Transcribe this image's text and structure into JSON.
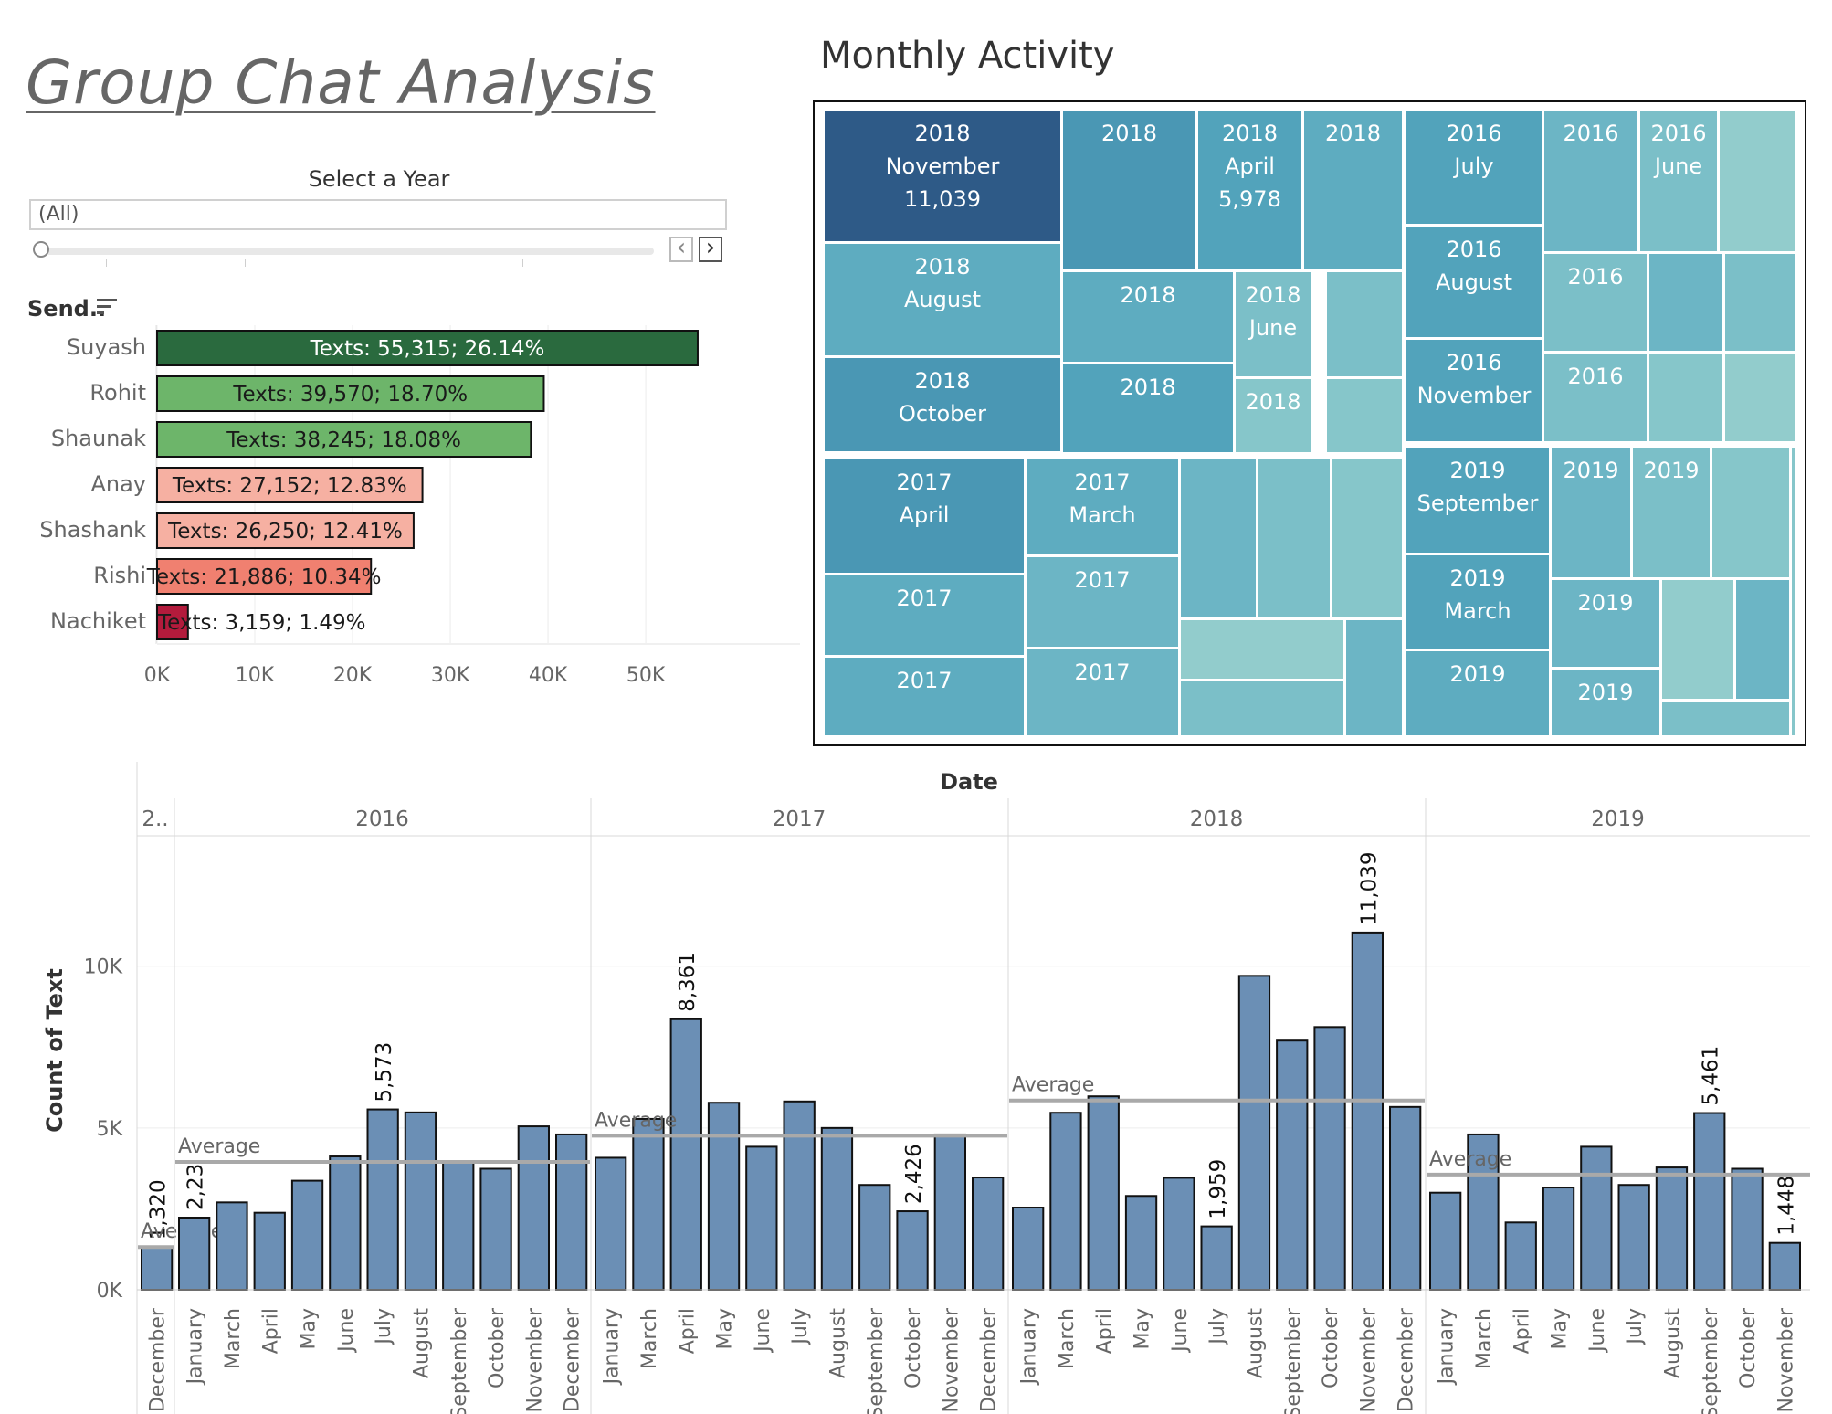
{
  "dashboard": {
    "title": "Group Chat Analysis"
  },
  "year_filter": {
    "title": "Select a Year",
    "value": "(All)",
    "prev_icon": "chevron-left-icon",
    "next_icon": "chevron-right-icon"
  },
  "senders": {
    "header": "Send..",
    "sort_icon": "sort-descending-icon"
  },
  "treemap": {
    "title": "Monthly Activity"
  },
  "colors": {
    "dark_green": "#2a6a3e",
    "mid_green": "#6db56a",
    "light_salmon": "#f6b0a2",
    "salmon": "#f08070",
    "crimson": "#b31b3c",
    "bar_blue": "#6b8fb5",
    "treemap_dark": "#2e5a87",
    "treemap_light": "#92cccc"
  },
  "chart_data": [
    {
      "type": "bar",
      "orientation": "horizontal",
      "categories": [
        "Suyash",
        "Rohit",
        "Shaunak",
        "Anay",
        "Shashank",
        "Rishi",
        "Nachiket"
      ],
      "values": [
        55315,
        39570,
        38245,
        27152,
        26250,
        21886,
        3159
      ],
      "labels": [
        "Texts: 55,315; 26.14%",
        "Texts: 39,570; 18.70%",
        "Texts: 38,245; 18.08%",
        "Texts: 27,152; 12.83%",
        "Texts: 26,250; 12.41%",
        "Texts: 21,886; 10.34%",
        "Texts: 3,159; 1.49%"
      ],
      "colors": [
        "#2a6a3e",
        "#6db56a",
        "#6db56a",
        "#f6b0a2",
        "#f6b0a2",
        "#f08070",
        "#b31b3c"
      ],
      "xlim": [
        0,
        57000
      ],
      "ticks": [
        0,
        10000,
        20000,
        30000,
        40000,
        50000
      ],
      "tick_labels": [
        "0K",
        "10K",
        "20K",
        "30K",
        "40K",
        "50K"
      ],
      "grid": true
    },
    {
      "type": "heatmap",
      "subtype": "treemap",
      "cells": [
        {
          "year": "2018",
          "month": "November",
          "value": 11039,
          "label": "2018\nNovember\n11,039"
        },
        {
          "year": "2018",
          "month": "",
          "label": "2018"
        },
        {
          "year": "2018",
          "month": "April",
          "value": 5978,
          "label": "2018\nApril\n5,978"
        },
        {
          "year": "2018",
          "month": "",
          "label": "2018"
        },
        {
          "year": "2018",
          "month": "August",
          "label": "2018\nAugust"
        },
        {
          "year": "2018",
          "month": "",
          "label": "2018"
        },
        {
          "year": "2018",
          "month": "June",
          "label": "2018\nJune"
        },
        {
          "year": "2018",
          "month": "October",
          "label": "2018\nOctober"
        },
        {
          "year": "2018",
          "month": "",
          "label": "2018"
        },
        {
          "year": "2018",
          "month": "",
          "label": "2018"
        },
        {
          "year": "2016",
          "month": "July",
          "label": "2016\nJuly"
        },
        {
          "year": "2016",
          "month": "",
          "label": "2016"
        },
        {
          "year": "2016",
          "month": "June",
          "label": "2016\nJune"
        },
        {
          "year": "2016",
          "month": "August",
          "label": "2016\nAugust"
        },
        {
          "year": "2016",
          "month": "",
          "label": "2016"
        },
        {
          "year": "2016",
          "month": "November",
          "label": "2016\nNovember"
        },
        {
          "year": "2016",
          "month": "",
          "label": "2016"
        },
        {
          "year": "2017",
          "month": "April",
          "label": "2017\nApril"
        },
        {
          "year": "2017",
          "month": "March",
          "label": "2017\nMarch"
        },
        {
          "year": "2017",
          "month": "",
          "label": "2017"
        },
        {
          "year": "2017",
          "month": "",
          "label": "2017"
        },
        {
          "year": "2017",
          "month": "",
          "label": "2017"
        },
        {
          "year": "2017",
          "month": "",
          "label": "2017"
        },
        {
          "year": "2019",
          "month": "September",
          "label": "2019\nSeptember"
        },
        {
          "year": "2019",
          "month": "",
          "label": "2019"
        },
        {
          "year": "2019",
          "month": "",
          "label": "2019"
        },
        {
          "year": "2019",
          "month": "March",
          "label": "2019\nMarch"
        },
        {
          "year": "2019",
          "month": "",
          "label": "2019"
        },
        {
          "year": "2019",
          "month": "",
          "label": "2019"
        },
        {
          "year": "2019",
          "month": "",
          "label": "2019"
        }
      ]
    },
    {
      "type": "bar",
      "title": "Date",
      "xlabel": "",
      "ylabel": "Count of Text",
      "ylim": [
        0,
        14000
      ],
      "yticks": [
        0,
        5000,
        10000
      ],
      "ytick_labels": [
        "0K",
        "5K",
        "10K"
      ],
      "grid": true,
      "average_label": "Average",
      "panels": [
        {
          "year_label": "2..",
          "months": [
            "December"
          ],
          "values": [
            1320
          ],
          "labels": [
            "1,320"
          ],
          "average": 1320
        },
        {
          "year_label": "2016",
          "months": [
            "January",
            "March",
            "April",
            "May",
            "June",
            "July",
            "August",
            "September",
            "October",
            "November",
            "December"
          ],
          "values": [
            2230,
            2700,
            2380,
            3370,
            4120,
            5573,
            5480,
            3950,
            3740,
            5050,
            4800
          ],
          "labels": [
            "2,23",
            "",
            "",
            "",
            "",
            "5,573",
            "",
            "",
            "",
            "",
            ""
          ],
          "average": 3950
        },
        {
          "year_label": "2017",
          "months": [
            "January",
            "March",
            "April",
            "May",
            "June",
            "July",
            "August",
            "September",
            "October",
            "November",
            "December"
          ],
          "values": [
            4080,
            5280,
            8361,
            5780,
            4420,
            5820,
            5000,
            3240,
            2426,
            4800,
            3470
          ],
          "labels": [
            "",
            "",
            "8,361",
            "",
            "",
            "",
            "",
            "",
            "2,426",
            "",
            ""
          ],
          "average": 4760
        },
        {
          "year_label": "2018",
          "months": [
            "January",
            "March",
            "April",
            "May",
            "June",
            "July",
            "August",
            "September",
            "October",
            "November",
            "December"
          ],
          "values": [
            2540,
            5470,
            5978,
            2900,
            3460,
            1959,
            9700,
            7700,
            8120,
            11039,
            5650
          ],
          "labels": [
            "",
            "",
            "",
            "",
            "",
            "1,959",
            "",
            "",
            "",
            "11,039",
            ""
          ],
          "average": 5850
        },
        {
          "year_label": "2019",
          "months": [
            "January",
            "March",
            "April",
            "May",
            "June",
            "July",
            "August",
            "September",
            "October",
            "November"
          ],
          "values": [
            3000,
            4800,
            2080,
            3160,
            4420,
            3240,
            3780,
            5461,
            3740,
            1448
          ],
          "labels": [
            "",
            "",
            "",
            "",
            "",
            "",
            "",
            "5,461",
            "",
            "1,448"
          ],
          "average": 3560
        }
      ]
    }
  ]
}
